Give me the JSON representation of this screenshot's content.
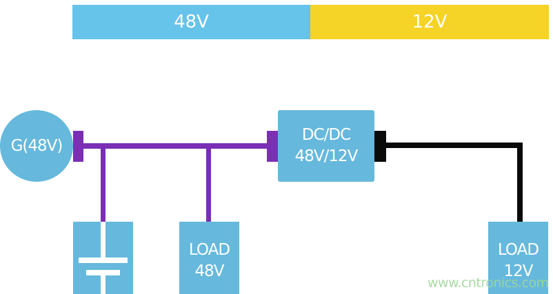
{
  "voltage_bar": {
    "left_label": "48V",
    "right_label": "12V",
    "left_color": "#66c3ea",
    "right_color": "#f5d327"
  },
  "generator": {
    "label": "G(48V)"
  },
  "converter": {
    "line1": "DC/DC",
    "line2": "48V/12V"
  },
  "load_48v": {
    "line1": "LOAD",
    "line2": "48V"
  },
  "load_12v": {
    "line1": "LOAD",
    "line2": "12V"
  },
  "battery": {
    "icon": "capacitor-battery-icon"
  },
  "colors": {
    "bus_48v": "#7a2fb5",
    "bus_12v": "#0a0a0a",
    "block": "#66b8dd"
  },
  "watermark": "www.cntronics.com"
}
